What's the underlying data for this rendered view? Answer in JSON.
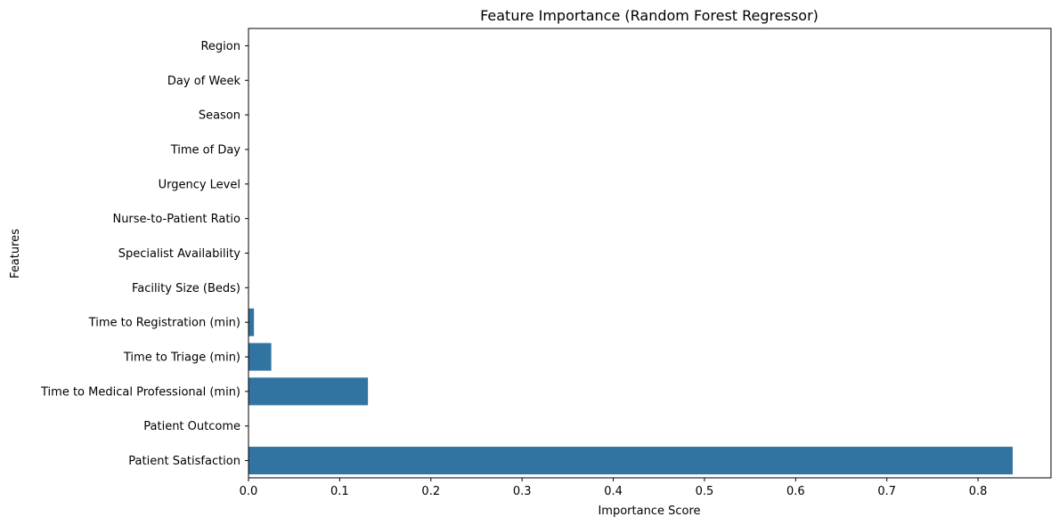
{
  "chart_data": {
    "type": "bar",
    "orientation": "horizontal",
    "title": "Feature Importance (Random Forest Regressor)",
    "xlabel": "Importance Score",
    "ylabel": "Features",
    "categories": [
      "Region",
      "Day of Week",
      "Season",
      "Time of Day",
      "Urgency Level",
      "Nurse-to-Patient Ratio",
      "Specialist Availability",
      "Facility Size (Beds)",
      "Time to Registration (min)",
      "Time to Triage (min)",
      "Time to Medical Professional (min)",
      "Patient Outcome",
      "Patient Satisfaction"
    ],
    "values": [
      0.0,
      0.0,
      0.0,
      0.0,
      0.0,
      0.0,
      0.0,
      0.0,
      0.006,
      0.025,
      0.131,
      0.0,
      0.838
    ],
    "xlim": [
      0,
      0.88
    ],
    "xticks": [
      0.0,
      0.1,
      0.2,
      0.3,
      0.4,
      0.5,
      0.6,
      0.7,
      0.8
    ],
    "xtick_labels": [
      "0.0",
      "0.1",
      "0.2",
      "0.3",
      "0.4",
      "0.5",
      "0.6",
      "0.7",
      "0.8"
    ],
    "bar_color": "#3274a1",
    "grid": false,
    "legend": "none"
  }
}
